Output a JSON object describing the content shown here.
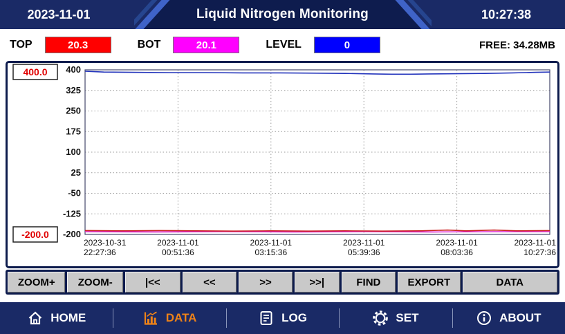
{
  "header": {
    "date": "2023-11-01",
    "title": "Liquid Nitrogen Monitoring",
    "time": "10:27:38"
  },
  "status": {
    "top": {
      "label": "TOP",
      "value": "20.3",
      "color": "#ff0000"
    },
    "bot": {
      "label": "BOT",
      "value": "20.1",
      "color": "#ff00ff"
    },
    "level": {
      "label": "LEVEL",
      "value": "0",
      "color": "#0000ff"
    },
    "free": "FREE: 34.28MB"
  },
  "toolbar": {
    "buttons": [
      "ZOOM+",
      "ZOOM-",
      "|<<",
      "<<",
      ">>",
      ">>|",
      "FIND",
      "EXPORT",
      "DATA"
    ]
  },
  "nav": {
    "items": [
      {
        "label": "HOME",
        "icon": "home-icon",
        "active": false
      },
      {
        "label": "DATA",
        "icon": "data-chart-icon",
        "active": true
      },
      {
        "label": "LOG",
        "icon": "log-icon",
        "active": false
      },
      {
        "label": "SET",
        "icon": "gear-icon",
        "active": false
      },
      {
        "label": "ABOUT",
        "icon": "about-info-icon",
        "active": false
      }
    ]
  },
  "colors": {
    "navy": "#1a2a66",
    "panel_border": "#0d1b4d",
    "accent_blue": "#3f63c8",
    "active_orange": "#ef8318",
    "grid": "#999999",
    "plot_border": "#44466a",
    "minmax_text": "#e00000"
  },
  "chart_data": {
    "type": "line",
    "title": "",
    "xlabel": "",
    "ylabel": "",
    "ylim": [
      -200,
      400
    ],
    "yticks": [
      400,
      325,
      250,
      175,
      100,
      25,
      -50,
      -125,
      -200
    ],
    "y_max_box": "400.0",
    "y_min_box": "-200.0",
    "grid": true,
    "legend": "none",
    "x_labels": [
      [
        "2023-10-31",
        "22:27:36"
      ],
      [
        "2023-11-01",
        "00:51:36"
      ],
      [
        "2023-11-01",
        "03:15:36"
      ],
      [
        "2023-11-01",
        "05:39:36"
      ],
      [
        "2023-11-01",
        "08:03:36"
      ],
      [
        "2023-11-01",
        "10:27:36"
      ]
    ],
    "series": [
      {
        "name": "channel-magenta",
        "color": "#dd22cc",
        "points": [
          [
            0,
            -190
          ],
          [
            0.15,
            -191
          ],
          [
            0.3,
            -190
          ],
          [
            0.45,
            -191
          ],
          [
            0.6,
            -190
          ],
          [
            0.75,
            -191
          ],
          [
            0.9,
            -190
          ],
          [
            1,
            -190
          ]
        ]
      },
      {
        "name": "channel-red",
        "color": "#cc2222",
        "points": [
          [
            0,
            -186
          ],
          [
            0.08,
            -187
          ],
          [
            0.16,
            -186
          ],
          [
            0.24,
            -187
          ],
          [
            0.32,
            -188
          ],
          [
            0.4,
            -187
          ],
          [
            0.48,
            -188
          ],
          [
            0.56,
            -187
          ],
          [
            0.64,
            -188
          ],
          [
            0.72,
            -187
          ],
          [
            0.78,
            -184
          ],
          [
            0.82,
            -187
          ],
          [
            0.88,
            -184
          ],
          [
            0.93,
            -187
          ],
          [
            1,
            -186
          ]
        ]
      },
      {
        "name": "channel-blue",
        "color": "#2233bb",
        "points": [
          [
            0,
            395
          ],
          [
            0.04,
            392
          ],
          [
            0.1,
            391
          ],
          [
            0.18,
            390
          ],
          [
            0.26,
            390
          ],
          [
            0.34,
            389
          ],
          [
            0.42,
            389
          ],
          [
            0.5,
            388
          ],
          [
            0.56,
            387
          ],
          [
            0.62,
            385
          ],
          [
            0.66,
            384
          ],
          [
            0.7,
            384
          ],
          [
            0.74,
            385
          ],
          [
            0.8,
            386
          ],
          [
            0.86,
            387
          ],
          [
            0.92,
            389
          ],
          [
            0.97,
            391
          ],
          [
            1,
            392
          ]
        ]
      }
    ]
  }
}
